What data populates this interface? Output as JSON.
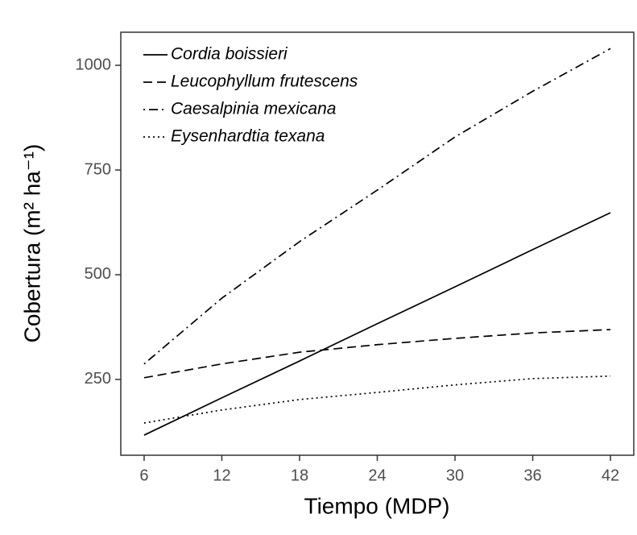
{
  "chart_data": {
    "type": "line",
    "x_label": "Tiempo (MDP)",
    "y_label": "Cobertura (m² ha⁻¹)",
    "x": [
      6,
      12,
      18,
      24,
      30,
      36,
      42
    ],
    "series": [
      {
        "name": "Cordia boissieri",
        "color": "#000000",
        "dash": "solid",
        "values": [
          117,
          206,
          294,
          383,
          471,
          560,
          648
        ]
      },
      {
        "name": "Leucophyllum frutescens",
        "color": "#000000",
        "dash": "dashed",
        "values": [
          254,
          287,
          315,
          333,
          348,
          361,
          369
        ]
      },
      {
        "name": "Caesalpinia mexicana",
        "color": "#000000",
        "dash": "dotdash",
        "values": [
          287,
          444,
          579,
          702,
          829,
          938,
          1040
        ]
      },
      {
        "name": "Eysenhardtia texana",
        "color": "#000000",
        "dash": "dotted",
        "values": [
          146,
          177,
          202,
          219,
          237,
          252,
          258
        ]
      }
    ],
    "xlim": [
      4.2,
      43.8
    ],
    "xticks": [
      6,
      12,
      18,
      24,
      30,
      36,
      42
    ],
    "ylim": [
      69,
      1079
    ],
    "yticks": [
      250,
      500,
      750,
      1000
    ],
    "grid": false,
    "legend": "top-left"
  }
}
